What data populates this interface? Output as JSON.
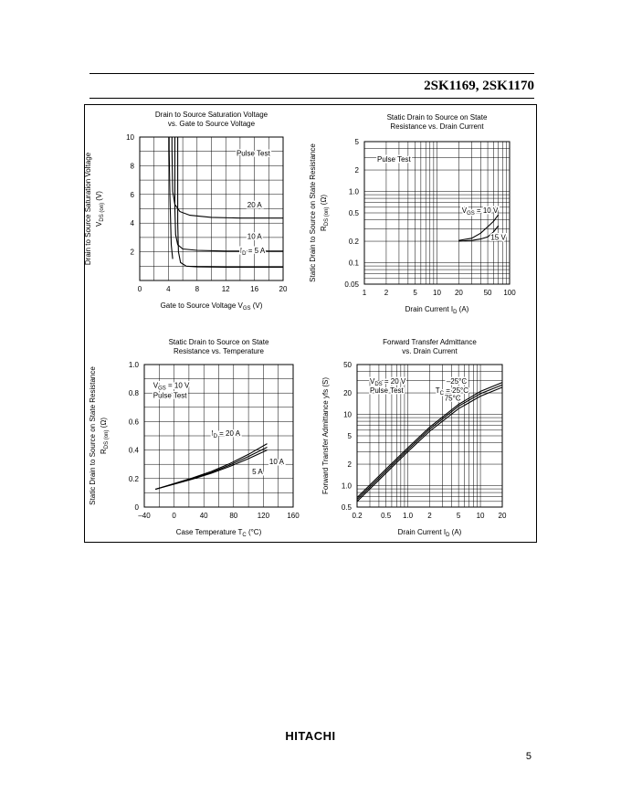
{
  "header": {
    "title": "2SK1169, 2SK1170"
  },
  "footer": {
    "logo": "HITACHI",
    "page_number": "5"
  },
  "chart_data": [
    {
      "id": "c1",
      "type": "line",
      "title": [
        "Drain to Source Saturation Voltage",
        "vs. Gate to Source Voltage"
      ],
      "xlabel": {
        "main": "Gate to Source Voltage  V",
        "sub": "GS",
        "tail": "  (V)"
      },
      "ylabel": {
        "main": "Drain to Source Saturation Voltage",
        "line2": "V",
        "sub": "DS (on)",
        "tail": "  (V)"
      },
      "xlim": [
        0,
        20
      ],
      "ylim": [
        0,
        10
      ],
      "xticks": [
        0,
        4,
        8,
        12,
        16,
        20
      ],
      "xtick_labels": [
        "0",
        "4",
        "8",
        "12",
        "16",
        "20"
      ],
      "yticks": [
        2,
        4,
        6,
        8,
        10
      ],
      "ytick_labels": [
        "2",
        "4",
        "6",
        "8",
        "10"
      ],
      "grid": true,
      "xgrid_step": 2,
      "ygrid_step": 1,
      "annotations": [
        {
          "text": "Pulse Test",
          "x": 13.5,
          "y": 8.7
        },
        {
          "text": "20 A",
          "x": 15.0,
          "y": 5.1
        },
        {
          "text": "10 A",
          "x": 15.0,
          "y": 2.9
        },
        {
          "text": "I",
          "sub": "D",
          "tail": " = 5 A",
          "x": 14.0,
          "y": 1.9
        }
      ],
      "series": [
        {
          "points": [
            [
              4.5,
              10
            ],
            [
              4.5,
              9.2
            ],
            [
              4.6,
              6.2
            ],
            [
              4.9,
              5.3
            ],
            [
              5.6,
              4.8
            ],
            [
              7,
              4.55
            ],
            [
              10,
              4.4
            ],
            [
              14,
              4.35
            ],
            [
              20,
              4.35
            ]
          ]
        },
        {
          "points": [
            [
              4.9,
              10
            ],
            [
              4.9,
              5
            ],
            [
              5.0,
              3.2
            ],
            [
              5.3,
              2.5
            ],
            [
              6,
              2.2
            ],
            [
              8,
              2.1
            ],
            [
              12,
              2.05
            ],
            [
              20,
              2.05
            ]
          ]
        },
        {
          "points": [
            [
              5.3,
              10
            ],
            [
              5.3,
              4
            ],
            [
              5.4,
              2.0
            ],
            [
              5.7,
              1.25
            ],
            [
              6.5,
              1.0
            ],
            [
              8,
              0.95
            ],
            [
              12,
              0.93
            ],
            [
              20,
              0.93
            ]
          ]
        },
        {
          "points": [
            [
              4.1,
              10
            ],
            [
              4.1,
              9.2
            ],
            [
              4.2,
              6
            ],
            [
              4.4,
              2.5
            ],
            [
              4.6,
              1.5
            ]
          ]
        }
      ]
    },
    {
      "id": "c2",
      "type": "line",
      "title": [
        "Static Drain to Source on State",
        "Resistance vs. Drain Current"
      ],
      "xlabel": {
        "main": "Drain Current I",
        "sub": "D",
        "tail": "  (A)"
      },
      "ylabel": {
        "main": "Static Drain to Source on State Resistance",
        "line2": "R",
        "sub": "DS (on)",
        "tail": "  (Ω)"
      },
      "xscale": "log",
      "yscale": "log",
      "xlim": [
        1,
        100
      ],
      "ylim": [
        0.05,
        5
      ],
      "xticks": [
        1,
        2,
        5,
        10,
        20,
        50,
        100
      ],
      "xtick_labels": [
        "1",
        "2",
        "5",
        "10",
        "20",
        "50",
        "100"
      ],
      "yticks": [
        0.05,
        0.1,
        0.2,
        0.5,
        1.0,
        2,
        5
      ],
      "ytick_labels": [
        "0.05",
        "0.1",
        "0.2",
        "0.5",
        "1.0",
        "2",
        "5"
      ],
      "grid": true,
      "annotations": [
        {
          "text": "Pulse Test",
          "x": 1.5,
          "y": 2.6
        },
        {
          "text": "V",
          "sub": "GS",
          "tail": " = 10 V",
          "x": 22,
          "y": 0.5
        },
        {
          "text": "15 V",
          "x": 55,
          "y": 0.21
        }
      ],
      "series": [
        {
          "points": [
            [
              20,
              0.205
            ],
            [
              30,
              0.22
            ],
            [
              40,
              0.26
            ],
            [
              50,
              0.32
            ],
            [
              60,
              0.38
            ],
            [
              70,
              0.47
            ]
          ]
        },
        {
          "points": [
            [
              20,
              0.2
            ],
            [
              30,
              0.205
            ],
            [
              40,
              0.215
            ],
            [
              50,
              0.23
            ],
            [
              60,
              0.27
            ],
            [
              70,
              0.33
            ]
          ]
        }
      ]
    },
    {
      "id": "c3",
      "type": "line",
      "title": [
        "Static Drain to Source on State",
        "Resistance vs. Temperature"
      ],
      "xlabel": {
        "main": "Case Temperature  T",
        "sub": "C",
        "tail": "  (°C)"
      },
      "ylabel": {
        "main": "Static Drain to Source on State Resistance",
        "line2": "R",
        "sub": "DS (on)",
        "tail": "  (Ω)"
      },
      "xlim": [
        -40,
        160
      ],
      "ylim": [
        0,
        1.0
      ],
      "xticks": [
        -40,
        0,
        40,
        80,
        120,
        160
      ],
      "xtick_labels": [
        "–40",
        "0",
        "40",
        "80",
        "120",
        "160"
      ],
      "yticks": [
        0,
        0.2,
        0.4,
        0.6,
        0.8,
        1.0
      ],
      "ytick_labels": [
        "0",
        "0.2",
        "0.4",
        "0.6",
        "0.8",
        "1.0"
      ],
      "grid": true,
      "xgrid_step": 20,
      "ygrid_step": 0.1,
      "annotations": [
        {
          "text": "V",
          "sub": "GS",
          "tail": " = 10 V",
          "x": -28,
          "y": 0.835
        },
        {
          "text": "Pulse Test",
          "x": -28,
          "y": 0.765
        },
        {
          "text": "I",
          "sub": "D",
          "tail": " = 20 A",
          "x": 50,
          "y": 0.5
        },
        {
          "text": "10 A",
          "x": 128,
          "y": 0.3
        },
        {
          "text": "5 A",
          "x": 105,
          "y": 0.23
        }
      ],
      "series": [
        {
          "points": [
            [
              -25,
              0.125
            ],
            [
              0,
              0.165
            ],
            [
              25,
              0.205
            ],
            [
              50,
              0.25
            ],
            [
              75,
              0.305
            ],
            [
              100,
              0.37
            ],
            [
              125,
              0.445
            ]
          ]
        },
        {
          "points": [
            [
              -25,
              0.125
            ],
            [
              0,
              0.163
            ],
            [
              25,
              0.2
            ],
            [
              50,
              0.243
            ],
            [
              75,
              0.295
            ],
            [
              100,
              0.355
            ],
            [
              125,
              0.42
            ]
          ]
        },
        {
          "points": [
            [
              -25,
              0.125
            ],
            [
              0,
              0.16
            ],
            [
              25,
              0.196
            ],
            [
              50,
              0.237
            ],
            [
              75,
              0.285
            ],
            [
              100,
              0.34
            ],
            [
              125,
              0.4
            ]
          ]
        }
      ]
    },
    {
      "id": "c4",
      "type": "line",
      "title": [
        "Forward Transfer Admittance",
        "vs. Drain Current"
      ],
      "xlabel": {
        "main": "Drain Current  I",
        "sub": "D",
        "tail": "  (A)"
      },
      "ylabel": {
        "main": "Forward Transfer Admittance    yfs    (S)"
      },
      "xscale": "log",
      "yscale": "log",
      "xlim": [
        0.2,
        20
      ],
      "ylim": [
        0.5,
        50
      ],
      "xticks": [
        0.2,
        0.5,
        1.0,
        2,
        5,
        10,
        20
      ],
      "xtick_labels": [
        "0.2",
        "0.5",
        "1.0",
        "2",
        "5",
        "10",
        "20"
      ],
      "yticks": [
        0.5,
        1.0,
        2,
        5,
        10,
        20,
        50
      ],
      "ytick_labels": [
        "0.5",
        "1.0",
        "2",
        "5",
        "10",
        "20",
        "50"
      ],
      "grid": true,
      "annotations": [
        {
          "text": "V",
          "sub": "DS",
          "tail": " = 20 V",
          "x": 0.3,
          "y": 27
        },
        {
          "text": "Pulse Test",
          "x": 0.3,
          "y": 20
        },
        {
          "text": "–25°C",
          "x": 3.4,
          "y": 27
        },
        {
          "text": "T",
          "sub": "C",
          "tail": " = 25°C",
          "x": 2.4,
          "y": 20
        },
        {
          "text": "75°C",
          "x": 3.2,
          "y": 15.5
        }
      ],
      "series": [
        {
          "points": [
            [
              0.2,
              0.6
            ],
            [
              0.5,
              1.5
            ],
            [
              1,
              3.0
            ],
            [
              2,
              5.8
            ],
            [
              5,
              12
            ],
            [
              10,
              18
            ],
            [
              20,
              24
            ]
          ]
        },
        {
          "points": [
            [
              0.2,
              0.64
            ],
            [
              0.5,
              1.6
            ],
            [
              1,
              3.2
            ],
            [
              2,
              6.2
            ],
            [
              5,
              13
            ],
            [
              10,
              19.5
            ],
            [
              20,
              26
            ]
          ]
        },
        {
          "points": [
            [
              0.2,
              0.68
            ],
            [
              0.5,
              1.7
            ],
            [
              1,
              3.4
            ],
            [
              2,
              6.6
            ],
            [
              5,
              13.8
            ],
            [
              10,
              21
            ],
            [
              20,
              28
            ]
          ]
        }
      ]
    }
  ]
}
